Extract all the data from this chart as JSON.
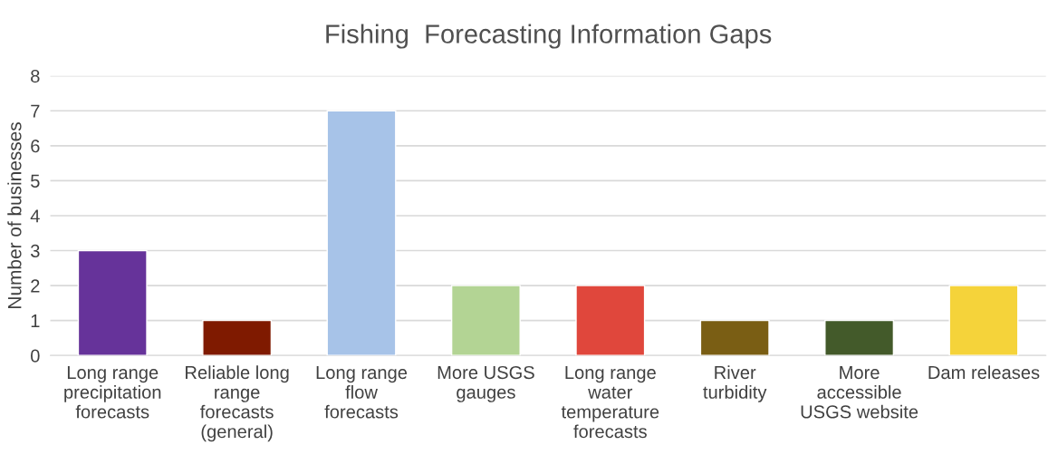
{
  "chart_data": {
    "type": "bar",
    "title": "Fishing  Forecasting Information Gaps",
    "ylabel": "Number of businesses",
    "categories": [
      "Long range\nprecipitation\nforecasts",
      "Reliable long\nrange\nforecasts\n(general)",
      "Long range\nflow\nforecasts",
      "More USGS\ngauges",
      "Long range\nwater\ntemperature\nforecasts",
      "River\nturbidity",
      "More\naccessible\nUSGS website",
      "Dam releases"
    ],
    "values": [
      3,
      1,
      7,
      2,
      2,
      1,
      1,
      2
    ],
    "colors": [
      "#66339a",
      "#7f1a00",
      "#a7c3e8",
      "#b3d494",
      "#e0473c",
      "#7a5e14",
      "#435a2a",
      "#f5d33a"
    ],
    "ylim": [
      0,
      8
    ],
    "yticks": [
      0,
      1,
      2,
      3,
      4,
      5,
      6,
      7,
      8
    ],
    "grid": "y",
    "legend": false
  }
}
